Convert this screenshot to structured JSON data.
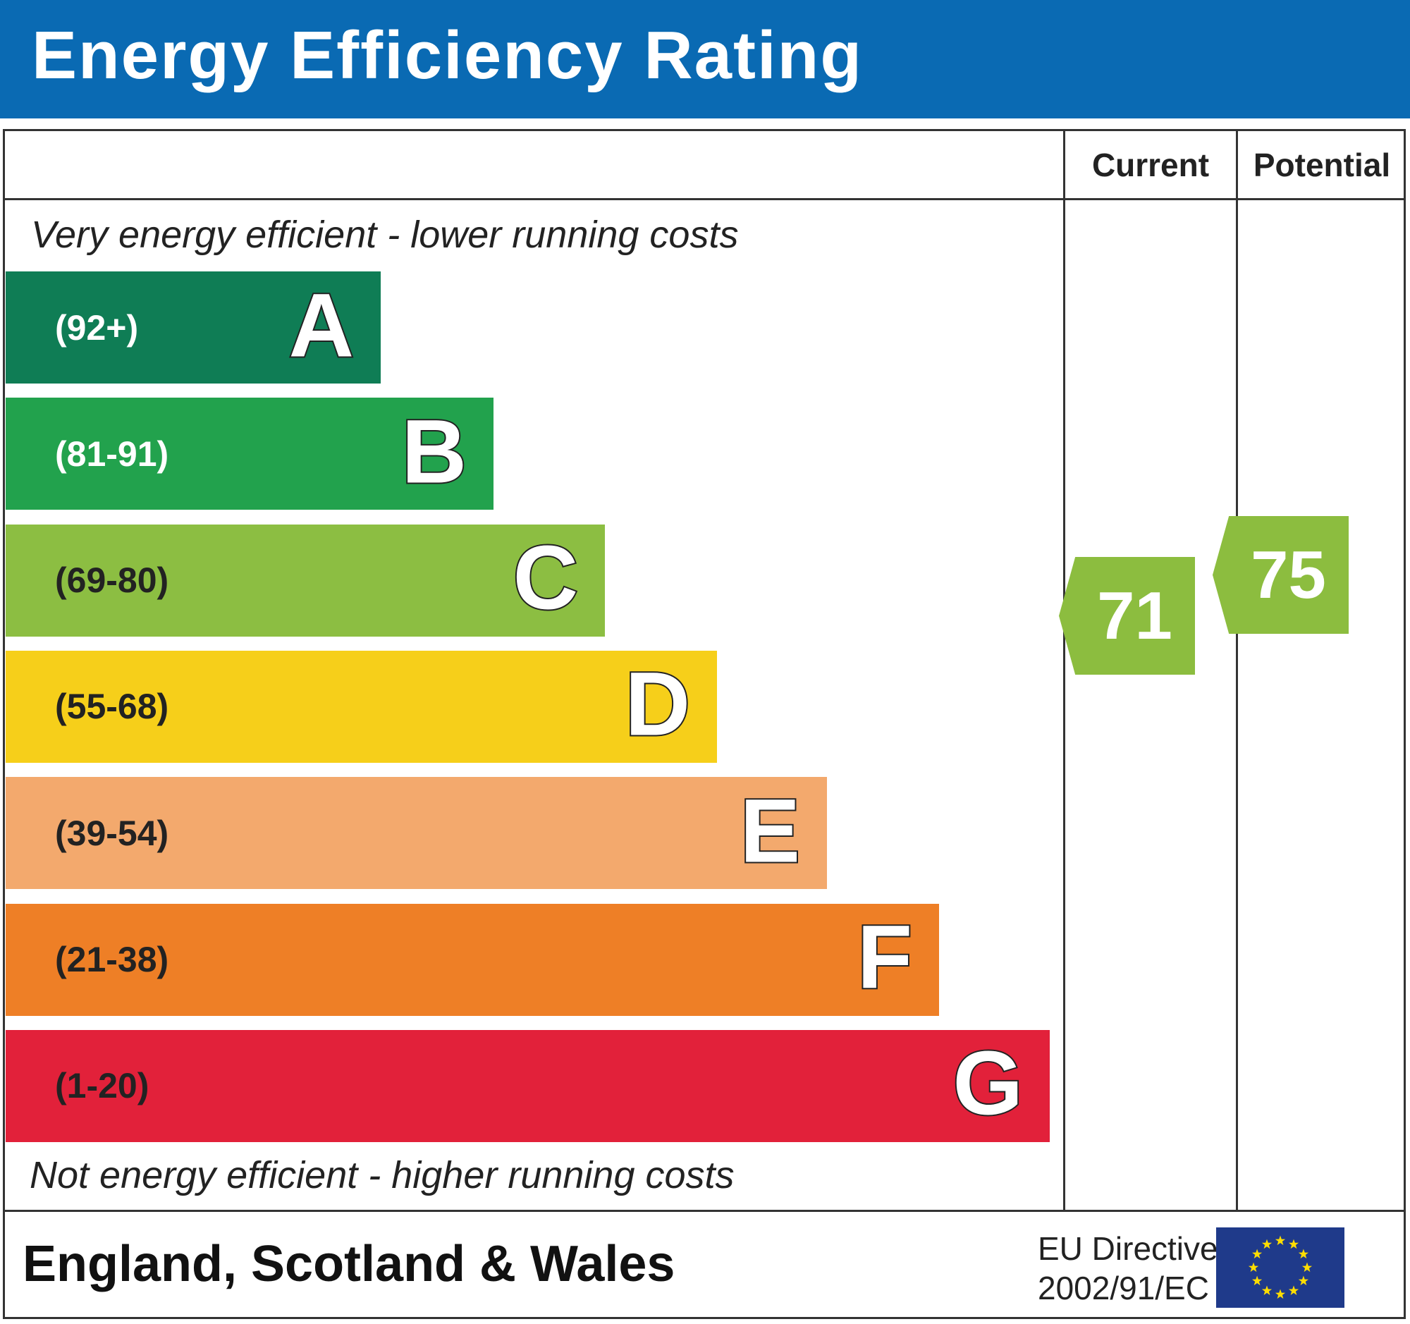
{
  "header": {
    "title": "Energy Efficiency Rating",
    "color": "#0a6ab3"
  },
  "columns": {
    "current": "Current",
    "potential": "Potential"
  },
  "notes": {
    "top": "Very energy efficient - lower running costs",
    "bottom": "Not energy efficient - higher running costs"
  },
  "chart_data": {
    "type": "bar",
    "bands": [
      {
        "letter": "A",
        "range": "(92+)",
        "color": "#0f7d55",
        "text_color": "#ffffff"
      },
      {
        "letter": "B",
        "range": "(81-91)",
        "color": "#22a24d",
        "text_color": "#ffffff"
      },
      {
        "letter": "C",
        "range": "(69-80)",
        "color": "#8cbe42",
        "text_color": "#222222"
      },
      {
        "letter": "D",
        "range": "(55-68)",
        "color": "#f6cf1a",
        "text_color": "#222222"
      },
      {
        "letter": "E",
        "range": "(39-54)",
        "color": "#f3a96d",
        "text_color": "#222222"
      },
      {
        "letter": "F",
        "range": "(21-38)",
        "color": "#ee7f26",
        "text_color": "#222222"
      },
      {
        "letter": "G",
        "range": "(1-20)",
        "color": "#e2213a",
        "text_color": "#222222"
      }
    ],
    "current": {
      "value": "71",
      "band": "C",
      "color": "#8cbd3f"
    },
    "potential": {
      "value": "75",
      "band": "C",
      "color": "#8cbd3f"
    }
  },
  "footer": {
    "region": "England, Scotland & Wales",
    "directive_line1": "EU Directive",
    "directive_line2": "2002/91/EC",
    "flag_icon": "eu-flag-icon"
  }
}
